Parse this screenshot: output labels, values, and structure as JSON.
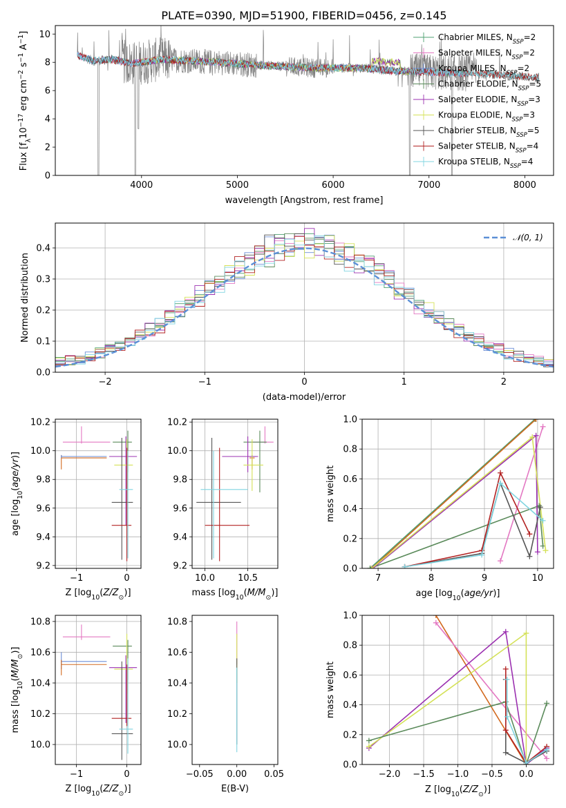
{
  "colors": {
    "Chabrier MILES": "#4c9f70",
    "Salpeter MILES": "#e377c2",
    "Kroupa MILES": "#6b8dd6",
    "Chabrier ELODIE": "#5a8a5a",
    "Salpeter ELODIE": "#9b30b0",
    "Kroupa ELODIE": "#d4e157",
    "Chabrier STELIB": "#555555",
    "Salpeter STELIB": "#b22222",
    "Kroupa STELIB": "#7fd4e0",
    "orange": "#d2691e",
    "normal": "#5b8fd6"
  },
  "chart_data": [
    {
      "id": "spectrum",
      "type": "line",
      "title": "PLATE=0390, MJD=51900, FIBERID=0456, z=0.145",
      "xlabel": "wavelength [Angstrom, rest frame]",
      "ylabel": "Flux [fλ10⁻¹⁷ erg cm⁻² s⁻¹ A⁻¹]",
      "xlim": [
        3100,
        8300
      ],
      "ylim": [
        0,
        10.6
      ],
      "xticks": [
        4000,
        5000,
        6000,
        7000,
        8000
      ],
      "yticks": [
        0,
        2,
        4,
        6,
        8,
        10
      ],
      "grid": false,
      "legend_position": "top-right",
      "legend": [
        {
          "label": "Chabrier MILES, N",
          "sub": "SSP",
          "suffix": "=2"
        },
        {
          "label": "Salpeter MILES, N",
          "sub": "SSP",
          "suffix": "=2"
        },
        {
          "label": "Kroupa MILES, N",
          "sub": "SSP",
          "suffix": "=2"
        },
        {
          "label": "Chabrier ELODIE, N",
          "sub": "SSP",
          "suffix": "=5"
        },
        {
          "label": "Salpeter ELODIE, N",
          "sub": "SSP",
          "suffix": "=3"
        },
        {
          "label": "Kroupa ELODIE, N",
          "sub": "SSP",
          "suffix": "=3"
        },
        {
          "label": "Chabrier STELIB, N",
          "sub": "SSP",
          "suffix": "=5"
        },
        {
          "label": "Salpeter STELIB, N",
          "sub": "SSP",
          "suffix": "=4"
        },
        {
          "label": "Kroupa STELIB, N",
          "sub": "SSP",
          "suffix": "=4"
        }
      ],
      "continuum": [
        [
          3330,
          8.5
        ],
        [
          3500,
          8.1
        ],
        [
          3700,
          8.2
        ],
        [
          3900,
          7.9
        ],
        [
          4000,
          8.0
        ],
        [
          4200,
          8.2
        ],
        [
          4500,
          8.1
        ],
        [
          4800,
          8.0
        ],
        [
          5000,
          7.9
        ],
        [
          5200,
          7.8
        ],
        [
          5500,
          7.7
        ],
        [
          5800,
          7.6
        ],
        [
          6000,
          7.6
        ],
        [
          6300,
          7.6
        ],
        [
          6600,
          7.4
        ],
        [
          7000,
          7.3
        ],
        [
          7500,
          7.2
        ],
        [
          8000,
          7.0
        ],
        [
          8150,
          6.9
        ]
      ],
      "dips": [
        [
          3550,
          0
        ],
        [
          3934,
          0
        ],
        [
          3968,
          3.3
        ],
        [
          6800,
          0
        ],
        [
          7240,
          0
        ]
      ]
    },
    {
      "id": "residuals",
      "type": "histogram",
      "xlabel": "(data-model)/error",
      "ylabel": "Normed distribution",
      "xlim": [
        -2.5,
        2.5
      ],
      "ylim": [
        0,
        0.48
      ],
      "xticks": [
        -2,
        -1,
        0,
        1,
        2
      ],
      "yticks": [
        0.0,
        0.1,
        0.2,
        0.3,
        0.4
      ],
      "grid": true,
      "legend_position": "top-right",
      "legend": [
        {
          "label": "𝒩(0, 1)"
        }
      ],
      "bin_width": 0.1
    },
    {
      "id": "age-vs-Z",
      "type": "errorbar",
      "xlabel": "Z [log₁₀(Z/Z⊙)]",
      "ylabel": "age  [log₁₀(age/yr)]",
      "xlim": [
        -1.42,
        0.28
      ],
      "ylim": [
        9.18,
        10.22
      ],
      "xticks": [
        -1,
        0
      ],
      "yticks": [
        9.2,
        9.4,
        9.6,
        9.8,
        10.0,
        10.2
      ],
      "grid": true,
      "points": [
        {
          "series": "Salpeter MILES",
          "x": -0.9,
          "y": 10.06,
          "xl": -1.27,
          "xh": -0.33,
          "yl": 10.05,
          "yh": 10.17
        },
        {
          "series": "orange",
          "x": -1.3,
          "y": 9.95,
          "xl": -1.3,
          "xh": -0.4,
          "yl": 9.87,
          "yh": 9.97
        },
        {
          "series": "Kroupa MILES",
          "x": -1.3,
          "y": 9.96,
          "xl": -1.3,
          "xh": -0.4,
          "yl": 9.95,
          "yh": 9.97
        },
        {
          "series": "Chabrier ELODIE",
          "x": 0.02,
          "y": 10.06,
          "xl": -0.28,
          "xh": 0.1,
          "yl": 9.85,
          "yh": 10.14
        },
        {
          "series": "Salpeter ELODIE",
          "x": -0.02,
          "y": 9.96,
          "xl": -0.35,
          "xh": 0.2,
          "yl": 9.48,
          "yh": 10.1
        },
        {
          "series": "Kroupa ELODIE",
          "x": 0.0,
          "y": 9.9,
          "xl": -0.25,
          "xh": 0.12,
          "yl": 9.72,
          "yh": 10.08
        },
        {
          "series": "Chabrier STELIB",
          "x": -0.1,
          "y": 9.64,
          "xl": -0.3,
          "xh": 0.12,
          "yl": 9.24,
          "yh": 10.09
        },
        {
          "series": "Salpeter STELIB",
          "x": 0.0,
          "y": 9.48,
          "xl": -0.3,
          "xh": 0.09,
          "yl": 9.23,
          "yh": 10.02
        },
        {
          "series": "Kroupa STELIB",
          "x": 0.02,
          "y": 9.73,
          "xl": -0.15,
          "xh": 0.12,
          "yl": 9.25,
          "yh": 10.0
        }
      ]
    },
    {
      "id": "age-vs-mass",
      "type": "errorbar",
      "xlabel": "mass [log₁₀(M/M⊙)]",
      "ylabel": "",
      "xlim": [
        9.85,
        10.85
      ],
      "ylim": [
        9.18,
        10.22
      ],
      "xticks": [
        10.0,
        10.5
      ],
      "yticks": [
        9.2,
        9.4,
        9.6,
        9.8,
        10.0,
        10.2
      ],
      "grid": true,
      "points": [
        {
          "series": "Salpeter MILES",
          "x": 10.7,
          "y": 10.06,
          "xl": 10.55,
          "xh": 10.8,
          "yl": 10.05,
          "yh": 10.17
        },
        {
          "series": "orange",
          "x": 10.55,
          "y": 9.95,
          "xl": 10.52,
          "xh": 10.58,
          "yl": 9.87,
          "yh": 9.97
        },
        {
          "series": "Kroupa MILES",
          "x": 10.55,
          "y": 9.96,
          "xl": 10.52,
          "xh": 10.6,
          "yl": 9.95,
          "yh": 9.97
        },
        {
          "series": "Chabrier ELODIE",
          "x": 10.64,
          "y": 10.06,
          "xl": 10.45,
          "xh": 10.72,
          "yl": 9.71,
          "yh": 10.14
        },
        {
          "series": "Salpeter ELODIE",
          "x": 10.5,
          "y": 9.96,
          "xl": 10.2,
          "xh": 10.62,
          "yl": 9.85,
          "yh": 10.1
        },
        {
          "series": "Kroupa ELODIE",
          "x": 10.55,
          "y": 9.9,
          "xl": 10.45,
          "xh": 10.68,
          "yl": 9.72,
          "yh": 10.08
        },
        {
          "series": "Chabrier STELIB",
          "x": 10.08,
          "y": 9.64,
          "xl": 9.9,
          "xh": 10.42,
          "yl": 9.24,
          "yh": 10.09
        },
        {
          "series": "Salpeter STELIB",
          "x": 10.17,
          "y": 9.48,
          "xl": 10.0,
          "xh": 10.52,
          "yl": 9.23,
          "yh": 10.02
        },
        {
          "series": "Kroupa STELIB",
          "x": 10.1,
          "y": 9.73,
          "xl": 9.95,
          "xh": 10.5,
          "yl": 9.25,
          "yh": 10.0
        }
      ]
    },
    {
      "id": "weight-vs-age",
      "type": "line",
      "xlabel": "age  [log₁₀(age/yr)]",
      "ylabel": "mass weight",
      "xlim": [
        6.7,
        10.3
      ],
      "ylim": [
        0,
        1.0
      ],
      "xticks": [
        7,
        8,
        9,
        10
      ],
      "yticks": [
        0.0,
        0.2,
        0.4,
        0.6,
        0.8,
        1.0
      ],
      "grid": true,
      "series": [
        {
          "name": "Chabrier MILES",
          "pts": [
            [
              6.85,
              0.0
            ],
            [
              9.95,
              1.0
            ]
          ]
        },
        {
          "name": "orange",
          "pts": [
            [
              6.88,
              0.0
            ],
            [
              9.97,
              1.0
            ]
          ]
        },
        {
          "name": "Salpeter MILES",
          "pts": [
            [
              9.3,
              0.05
            ],
            [
              10.1,
              0.95
            ]
          ]
        },
        {
          "name": "Chabrier ELODIE",
          "pts": [
            [
              6.85,
              0.0
            ],
            [
              10.03,
              0.42
            ],
            [
              10.1,
              0.15
            ]
          ]
        },
        {
          "name": "Salpeter ELODIE",
          "pts": [
            [
              6.9,
              0.0
            ],
            [
              9.97,
              0.89
            ],
            [
              10.0,
              0.11
            ]
          ]
        },
        {
          "name": "Kroupa ELODIE",
          "pts": [
            [
              6.88,
              0.0
            ],
            [
              9.9,
              0.88
            ],
            [
              10.15,
              0.12
            ]
          ]
        },
        {
          "name": "Chabrier STELIB",
          "pts": [
            [
              7.5,
              0.01
            ],
            [
              8.95,
              0.1
            ],
            [
              9.3,
              0.57
            ],
            [
              9.85,
              0.08
            ],
            [
              10.05,
              0.41
            ]
          ]
        },
        {
          "name": "Salpeter STELIB",
          "pts": [
            [
              7.5,
              0.01
            ],
            [
              8.95,
              0.12
            ],
            [
              9.3,
              0.64
            ],
            [
              9.85,
              0.23
            ]
          ]
        },
        {
          "name": "Kroupa STELIB",
          "pts": [
            [
              7.5,
              0.01
            ],
            [
              8.95,
              0.09
            ],
            [
              9.3,
              0.57
            ],
            [
              10.1,
              0.32
            ]
          ]
        }
      ]
    },
    {
      "id": "mass-vs-Z",
      "type": "errorbar",
      "xlabel": "Z [log₁₀(Z/Z⊙)]",
      "ylabel": "mass [log₁₀(M/M⊙)]",
      "xlim": [
        -1.42,
        0.28
      ],
      "ylim": [
        9.87,
        10.84
      ],
      "xticks": [
        -1,
        0
      ],
      "yticks": [
        10.0,
        10.2,
        10.4,
        10.6,
        10.8
      ],
      "grid": true,
      "points": [
        {
          "series": "Salpeter MILES",
          "x": -0.9,
          "y": 10.7,
          "xl": -1.27,
          "xh": -0.33,
          "yl": 10.68,
          "yh": 10.78
        },
        {
          "series": "Kroupa MILES",
          "x": -1.3,
          "y": 10.54,
          "xl": -1.3,
          "xh": -0.4,
          "yl": 10.49,
          "yh": 10.6
        },
        {
          "series": "orange",
          "x": -1.3,
          "y": 10.52,
          "xl": -1.3,
          "xh": -0.4,
          "yl": 10.45,
          "yh": 10.55
        },
        {
          "series": "Chabrier ELODIE",
          "x": 0.02,
          "y": 10.64,
          "xl": -0.28,
          "xh": 0.1,
          "yl": 10.42,
          "yh": 10.68
        },
        {
          "series": "Salpeter ELODIE",
          "x": -0.02,
          "y": 10.5,
          "xl": -0.35,
          "xh": 0.2,
          "yl": 10.14,
          "yh": 10.58
        },
        {
          "series": "Kroupa ELODIE",
          "x": 0.0,
          "y": 10.49,
          "xl": -0.25,
          "xh": 0.12,
          "yl": 10.33,
          "yh": 10.72
        },
        {
          "series": "Chabrier STELIB",
          "x": -0.1,
          "y": 10.07,
          "xl": -0.3,
          "xh": 0.12,
          "yl": 9.9,
          "yh": 10.54
        },
        {
          "series": "Salpeter STELIB",
          "x": 0.0,
          "y": 10.17,
          "xl": -0.3,
          "xh": 0.09,
          "yl": 10.12,
          "yh": 10.52
        },
        {
          "series": "Kroupa STELIB",
          "x": 0.02,
          "y": 10.1,
          "xl": -0.15,
          "xh": 0.12,
          "yl": 9.94,
          "yh": 10.56
        }
      ]
    },
    {
      "id": "mass-vs-EBV",
      "type": "errorbar",
      "xlabel": "E(B-V)",
      "ylabel": "",
      "xlim": [
        -0.06,
        0.055
      ],
      "ylim": [
        9.87,
        10.84
      ],
      "xticks": [
        -0.05,
        0.0,
        0.05
      ],
      "yticks": [
        10.0,
        10.2,
        10.4,
        10.6,
        10.8
      ],
      "grid": false,
      "points": [
        {
          "series": "Salpeter MILES",
          "x": 0.0,
          "y": 10.7,
          "xl": 0.0,
          "xh": 0.0,
          "yl": 10.52,
          "yh": 10.8
        },
        {
          "series": "Kroupa ELODIE",
          "x": 0.0,
          "y": 10.5,
          "xl": 0.0,
          "xh": 0.0,
          "yl": 10.4,
          "yh": 10.72
        },
        {
          "series": "Chabrier STELIB",
          "x": 0.0,
          "y": 10.5,
          "xl": 0.0,
          "xh": 0.0,
          "yl": 10.0,
          "yh": 10.56
        },
        {
          "series": "Kroupa STELIB",
          "x": 0.0,
          "y": 10.1,
          "xl": 0.0,
          "xh": 0.0,
          "yl": 9.95,
          "yh": 10.5
        }
      ]
    },
    {
      "id": "weight-vs-Z",
      "type": "line",
      "xlabel": "Z [log₁₀(Z/Z⊙)]",
      "ylabel": "mass weight",
      "xlim": [
        -2.4,
        0.4
      ],
      "ylim": [
        0,
        1.0
      ],
      "xticks": [
        -2.0,
        -1.5,
        -1.0,
        -0.5,
        0.0
      ],
      "yticks": [
        0.0,
        0.2,
        0.4,
        0.6,
        0.8,
        1.0
      ],
      "grid": true,
      "series": [
        {
          "name": "orange",
          "pts": [
            [
              -1.32,
              1.0
            ],
            [
              0.0,
              0.0
            ]
          ]
        },
        {
          "name": "Salpeter MILES",
          "pts": [
            [
              -1.32,
              0.95
            ],
            [
              0.3,
              0.04
            ]
          ]
        },
        {
          "name": "Salpeter ELODIE",
          "pts": [
            [
              -2.3,
              0.11
            ],
            [
              -0.3,
              0.89
            ],
            [
              0.0,
              0.0
            ],
            [
              0.3,
              0.11
            ]
          ]
        },
        {
          "name": "Kroupa ELODIE",
          "pts": [
            [
              -2.3,
              0.12
            ],
            [
              0.0,
              0.88
            ],
            [
              0.0,
              0.0
            ]
          ]
        },
        {
          "name": "Chabrier ELODIE",
          "pts": [
            [
              -2.3,
              0.16
            ],
            [
              -0.3,
              0.42
            ],
            [
              0.0,
              0.0
            ],
            [
              0.3,
              0.41
            ]
          ]
        },
        {
          "name": "Chabrier STELIB",
          "pts": [
            [
              -0.3,
              0.57
            ],
            [
              -0.3,
              0.08
            ],
            [
              0.0,
              0.01
            ],
            [
              0.3,
              0.09
            ]
          ]
        },
        {
          "name": "Salpeter STELIB",
          "pts": [
            [
              -0.3,
              0.64
            ],
            [
              -0.3,
              0.23
            ],
            [
              0.0,
              0.01
            ],
            [
              0.3,
              0.12
            ]
          ]
        },
        {
          "name": "Kroupa STELIB",
          "pts": [
            [
              -0.28,
              0.57
            ],
            [
              -0.28,
              0.32
            ],
            [
              0.0,
              0.01
            ],
            [
              0.3,
              0.1
            ]
          ]
        }
      ]
    }
  ]
}
